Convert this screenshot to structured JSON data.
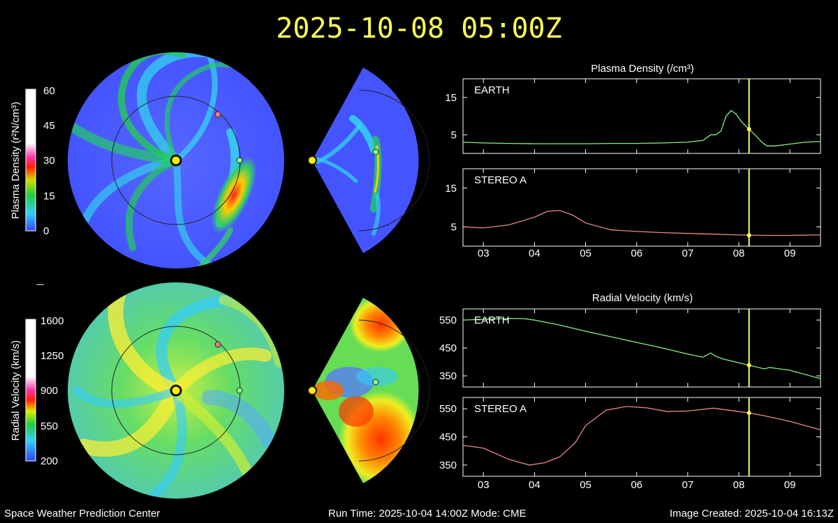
{
  "header": {
    "timestamp": "2025-10-08 05:00Z"
  },
  "footer": {
    "center_name": "Space Weather Prediction Center",
    "run_info": "Run Time: 2025-10-04 14:00Z  Mode: CME",
    "image_created": "Image Created: 2025-10-04 16:13Z"
  },
  "colorbars": {
    "density": {
      "label": "Plasma Density (r²N/cm³)",
      "ticks": [
        "60",
        "45",
        "30",
        "15",
        "0"
      ]
    },
    "velocity": {
      "label": "Radial Velocity (km/s)",
      "ticks": [
        "1600",
        "1250",
        "900",
        "550",
        "200"
      ]
    }
  },
  "colors": {
    "timestamp": "#ffff55",
    "earth_series": "#88ee88",
    "stereo_series": "#ee8888",
    "current_time_marker": "#ffff66",
    "sun": "#ffee00"
  },
  "chart_data": [
    {
      "type": "line",
      "title": "Plasma Density (/cm³)",
      "panel_label": "EARTH",
      "x_tick_labels": [
        "03",
        "04",
        "05",
        "06",
        "07",
        "08",
        "09"
      ],
      "x_range_days": [
        2.6,
        9.6
      ],
      "ylim": [
        0,
        20
      ],
      "y_ticks": [
        "15",
        "5"
      ],
      "y_tick_values": [
        15,
        5
      ],
      "current_time": 8.2,
      "current_value": 6.5,
      "x": [
        2.6,
        3.0,
        3.5,
        4.0,
        4.5,
        5.0,
        5.5,
        6.0,
        6.5,
        7.0,
        7.3,
        7.45,
        7.55,
        7.65,
        7.75,
        7.85,
        7.95,
        8.05,
        8.2,
        8.35,
        8.45,
        8.55,
        8.7,
        9.0,
        9.3,
        9.6
      ],
      "values": [
        3.0,
        2.8,
        2.7,
        2.6,
        2.6,
        2.6,
        2.7,
        2.7,
        2.8,
        3.0,
        3.5,
        5.0,
        5.0,
        6.0,
        10.0,
        11.5,
        10.5,
        8.5,
        6.5,
        4.5,
        3.0,
        2.0,
        2.0,
        2.5,
        3.0,
        3.2
      ]
    },
    {
      "type": "line",
      "panel_label": "STEREO A",
      "x_tick_labels": [
        "03",
        "04",
        "05",
        "06",
        "07",
        "08",
        "09"
      ],
      "x_range_days": [
        2.6,
        9.6
      ],
      "ylim": [
        0,
        20
      ],
      "y_ticks": [
        "15",
        "5"
      ],
      "y_tick_values": [
        15,
        5
      ],
      "current_time": 8.2,
      "current_value": 2.8,
      "x": [
        2.6,
        3.0,
        3.5,
        4.0,
        4.25,
        4.5,
        4.75,
        5.0,
        5.5,
        6.0,
        6.5,
        7.0,
        7.5,
        8.0,
        8.5,
        9.0,
        9.6
      ],
      "values": [
        5.0,
        4.7,
        5.5,
        7.5,
        9.0,
        9.2,
        8.0,
        6.0,
        4.2,
        3.8,
        3.5,
        3.3,
        3.1,
        2.9,
        2.8,
        2.8,
        2.9
      ]
    },
    {
      "type": "line",
      "title": "Radial Velocity (km/s)",
      "panel_label": "EARTH",
      "x_tick_labels": [
        "03",
        "04",
        "05",
        "06",
        "07",
        "08",
        "09"
      ],
      "x_range_days": [
        2.6,
        9.6
      ],
      "ylim": [
        310,
        590
      ],
      "y_ticks": [
        "550",
        "450",
        "350"
      ],
      "y_tick_values": [
        550,
        450,
        350
      ],
      "current_time": 8.2,
      "current_value": 388,
      "x": [
        2.6,
        3.0,
        3.5,
        3.8,
        4.0,
        4.5,
        5.0,
        5.5,
        6.0,
        6.5,
        7.0,
        7.3,
        7.45,
        7.55,
        7.7,
        8.0,
        8.2,
        8.5,
        8.6,
        8.8,
        9.0,
        9.6
      ],
      "values": [
        550,
        553,
        556,
        555,
        550,
        532,
        510,
        490,
        470,
        450,
        428,
        417,
        432,
        420,
        410,
        397,
        388,
        375,
        380,
        375,
        370,
        340
      ]
    },
    {
      "type": "line",
      "panel_label": "STEREO A",
      "x_tick_labels": [
        "03",
        "04",
        "05",
        "06",
        "07",
        "08",
        "09"
      ],
      "x_range_days": [
        2.6,
        9.6
      ],
      "ylim": [
        310,
        590
      ],
      "y_ticks": [
        "550",
        "450",
        "350"
      ],
      "y_tick_values": [
        550,
        450,
        350
      ],
      "current_time": 8.2,
      "current_value": 535,
      "x": [
        2.6,
        3.0,
        3.5,
        3.9,
        4.2,
        4.5,
        4.8,
        5.0,
        5.4,
        5.8,
        6.2,
        6.6,
        7.0,
        7.5,
        8.0,
        8.2,
        8.5,
        9.0,
        9.6
      ],
      "values": [
        420,
        410,
        370,
        350,
        358,
        380,
        430,
        490,
        545,
        558,
        553,
        540,
        542,
        552,
        540,
        535,
        525,
        505,
        475
      ]
    }
  ]
}
